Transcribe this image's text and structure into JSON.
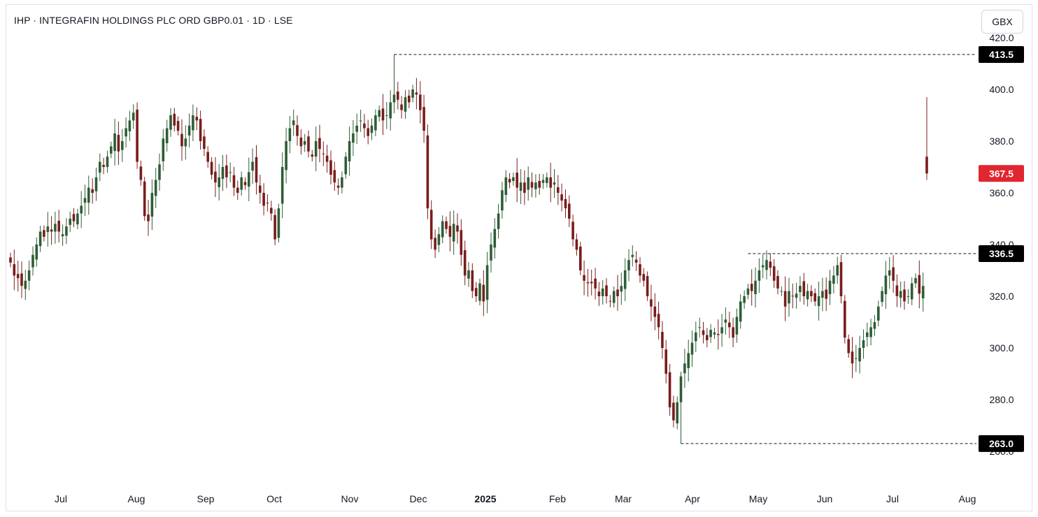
{
  "header": {
    "title": "IHP · INTEGRAFIN HOLDINGS PLC ORD GBP0.01 · 1D · LSE",
    "currency_button": "GBX"
  },
  "colors": {
    "up": "#2e5d36",
    "down": "#7a1c1c",
    "last_price_bg": "#e0262f",
    "marker_bg": "#000000",
    "dashed_line": "#131722"
  },
  "chart_data": {
    "type": "candlestick",
    "title": "IHP · INTEGRAFIN HOLDINGS PLC ORD GBP0.01 · 1D · LSE",
    "ylim": [
      250,
      425
    ],
    "y_ticks": [
      "260.0",
      "280.0",
      "300.0",
      "320.0",
      "340.0",
      "360.0",
      "380.0",
      "400.0",
      "420.0"
    ],
    "x_labels": [
      "Jul",
      "Aug",
      "Sep",
      "Oct",
      "Nov",
      "Dec",
      "2025",
      "Feb",
      "Mar",
      "Apr",
      "May",
      "Jun",
      "Jul",
      "Aug"
    ],
    "x_label_bold": "2025",
    "grid": false,
    "price_markers": [
      {
        "label": "413.5",
        "value": 413.5,
        "style": "high"
      },
      {
        "label": "367.5",
        "value": 367.5,
        "style": "last"
      },
      {
        "label": "336.5",
        "value": 336.5,
        "style": "level"
      },
      {
        "label": "263.0",
        "value": 263.0,
        "style": "low"
      }
    ],
    "candles_close": [
      333,
      328,
      327,
      324,
      326,
      330,
      336,
      340,
      345,
      343,
      347,
      345,
      348,
      345,
      344,
      347,
      350,
      349,
      352,
      355,
      358,
      362,
      360,
      366,
      372,
      370,
      374,
      378,
      383,
      376,
      380,
      385,
      388,
      391,
      372,
      365,
      351,
      349,
      360,
      365,
      371,
      381,
      385,
      390,
      386,
      384,
      378,
      381,
      386,
      390,
      388,
      380,
      377,
      372,
      367,
      364,
      366,
      370,
      366,
      368,
      362,
      360,
      366,
      363,
      368,
      372,
      364,
      360,
      355,
      356,
      352,
      342,
      354,
      370,
      380,
      385,
      388,
      382,
      378,
      380,
      376,
      374,
      380,
      377,
      375,
      372,
      367,
      364,
      362,
      366,
      374,
      380,
      383,
      386,
      388,
      385,
      382,
      386,
      390,
      392,
      388,
      390,
      395,
      398,
      396,
      392,
      397,
      395,
      400,
      398,
      392,
      384,
      354,
      342,
      338,
      344,
      349,
      346,
      343,
      348,
      345,
      336,
      328,
      330,
      322,
      320,
      325,
      318,
      332,
      340,
      346,
      352,
      361,
      366,
      364,
      366,
      362,
      364,
      360,
      366,
      362,
      364,
      362,
      365,
      366,
      362,
      364,
      360,
      357,
      354,
      350,
      342,
      338,
      330,
      326,
      325,
      325,
      323,
      320,
      323,
      320,
      318,
      322,
      320,
      324,
      330,
      334,
      336,
      333,
      328,
      326,
      320,
      316,
      312,
      308,
      300,
      290,
      277,
      272,
      279,
      289,
      294,
      298,
      302,
      306,
      308,
      305,
      303,
      307,
      306,
      305,
      308,
      311,
      308,
      304,
      312,
      318,
      320,
      323,
      322,
      326,
      330,
      332,
      334,
      331,
      326,
      323,
      322,
      316,
      322,
      320,
      321,
      324,
      320,
      322,
      320,
      318,
      320,
      322,
      319,
      326,
      328,
      332,
      320,
      304,
      298,
      294,
      296,
      300,
      303,
      306,
      308,
      310,
      316,
      322,
      328,
      330,
      326,
      320,
      322,
      318,
      320,
      325,
      327,
      321,
      324,
      367.5
    ]
  }
}
